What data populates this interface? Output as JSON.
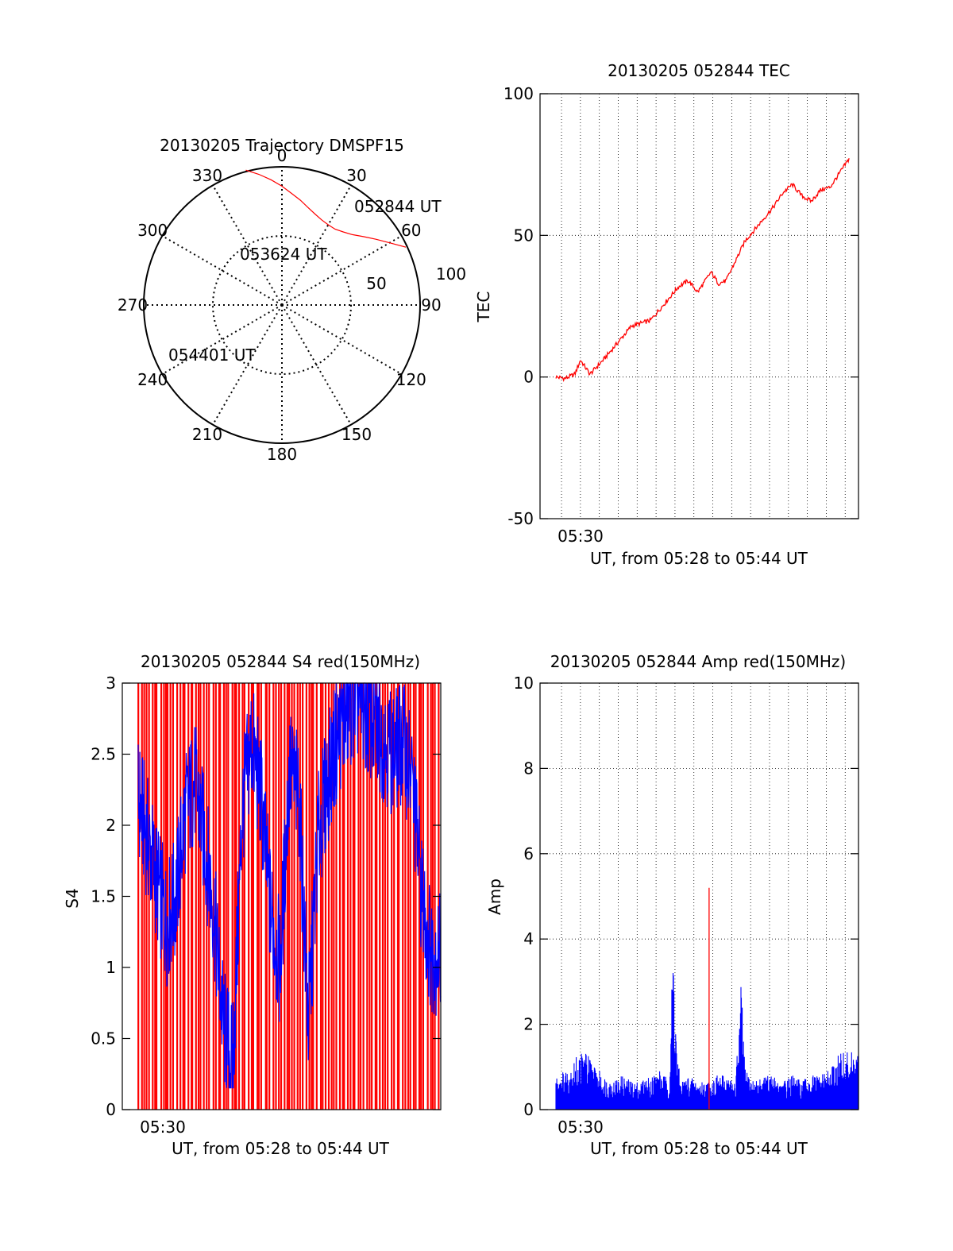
{
  "colors": {
    "red": "#ff0000",
    "blue": "#0000ff",
    "black": "#000000"
  },
  "chart_data": [
    {
      "type": "polar",
      "title": "20130205 Trajectory DMSPF15",
      "azimuth_labels": [
        "0",
        "30",
        "60",
        "90",
        "120",
        "150",
        "180",
        "210",
        "240",
        "270",
        "300",
        "330"
      ],
      "radius_labels": [
        "50",
        "100"
      ],
      "track": {
        "points_deg": [
          [
            65,
            99
          ],
          [
            60,
            90
          ],
          [
            55,
            83
          ],
          [
            50,
            77
          ],
          [
            45,
            72
          ],
          [
            40,
            69
          ],
          [
            35,
            67
          ],
          [
            30,
            67
          ],
          [
            25,
            68
          ],
          [
            20,
            70
          ],
          [
            15,
            73
          ],
          [
            10,
            77
          ],
          [
            5,
            81
          ],
          [
            0,
            86
          ],
          [
            -5,
            91
          ],
          [
            -10,
            96
          ],
          [
            -15,
            101
          ]
        ],
        "labels": [
          {
            "text": "052844 UT"
          },
          {
            "text": "053624 UT"
          },
          {
            "text": "054401 UT"
          }
        ]
      }
    },
    {
      "type": "line",
      "title": "20130205 052844 TEC",
      "xlabel": "UT, from 05:28 to 05:44 UT",
      "ylabel": "TEC",
      "xtick_label": "05:30",
      "yticks": [
        "-50",
        "0",
        "50",
        "100"
      ],
      "ylim": [
        -50,
        100
      ],
      "xlim_minutes": [
        0,
        16
      ],
      "grid": true,
      "series": [
        {
          "color": "red",
          "x_minutes": [
            0.0,
            0.5,
            1.0,
            1.3,
            1.8,
            2.5,
            3.0,
            3.5,
            4.0,
            4.5,
            5.0,
            5.5,
            6.0,
            6.5,
            7.0,
            7.5,
            7.8,
            8.2,
            8.6,
            9.0,
            9.5,
            10.0,
            10.5,
            11.0,
            11.5,
            12.0,
            12.5,
            13.0,
            13.5,
            14.0,
            14.5,
            15.0,
            15.5
          ],
          "y": [
            0,
            -0.5,
            1,
            6,
            1,
            6,
            10,
            14,
            18,
            19,
            20,
            24,
            28,
            32,
            34,
            30,
            33,
            37,
            33,
            34,
            41,
            48,
            52,
            56,
            60,
            65,
            68,
            64,
            62,
            66,
            67,
            72,
            77
          ]
        }
      ]
    },
    {
      "type": "line",
      "title": "20130205 052844 S4 red(150MHz)",
      "xlabel": "UT, from 05:28 to 05:44 UT",
      "ylabel": "S4",
      "xtick_label": "05:30",
      "yticks": [
        "0",
        "0.5",
        "1",
        "1.5",
        "2",
        "2.5",
        "3"
      ],
      "ylim": [
        0,
        3
      ],
      "xlim_minutes": [
        0,
        16
      ],
      "series": [
        {
          "name": "",
          "color": "blue",
          "x_minutes": [
            0.0,
            0.5,
            1.0,
            1.5,
            2.0,
            2.5,
            3.0,
            3.5,
            4.0,
            4.5,
            5.0,
            5.5,
            6.0,
            6.5,
            7.0,
            7.5,
            8.0,
            8.5,
            9.0,
            9.5,
            10.0,
            10.5,
            11.0,
            11.5,
            12.0,
            12.5,
            13.0,
            13.5,
            14.0,
            14.5,
            15.0,
            15.5
          ],
          "y": [
            2.2,
            1.9,
            1.6,
            1.3,
            1.5,
            2.1,
            2.3,
            1.9,
            1.4,
            0.6,
            0.3,
            2.1,
            2.6,
            2.2,
            1.4,
            1.0,
            2.4,
            2.2,
            0.6,
            1.9,
            2.3,
            2.6,
            2.8,
            2.9,
            2.8,
            2.7,
            2.6,
            2.5,
            2.6,
            2.3,
            1.5,
            1.1
          ]
        }
      ]
    },
    {
      "type": "line",
      "title": "20130205 052844 Amp red(150MHz)",
      "xlabel": "UT, from 05:28 to 05:44 UT",
      "ylabel": "Amp",
      "xtick_label": "05:30",
      "yticks": [
        "0",
        "2",
        "4",
        "6",
        "8",
        "10"
      ],
      "ylim": [
        0,
        10
      ],
      "xlim_minutes": [
        0,
        16
      ],
      "grid": true,
      "series": [
        {
          "color": "blue",
          "x_minutes": [
            0.0,
            0.5,
            1.0,
            1.5,
            2.0,
            2.5,
            3.0,
            3.5,
            4.0,
            4.5,
            5.0,
            5.5,
            6.0,
            6.2,
            6.4,
            6.6,
            7.0,
            7.5,
            8.0,
            8.5,
            9.0,
            9.5,
            9.8,
            10.0,
            10.5,
            11.0,
            11.5,
            12.0,
            12.5,
            13.0,
            13.5,
            14.0,
            14.5,
            15.0,
            15.5
          ],
          "y": [
            0.6,
            0.7,
            0.9,
            1.1,
            0.8,
            0.6,
            0.5,
            0.6,
            0.5,
            0.5,
            0.6,
            0.7,
            0.5,
            3.2,
            1.0,
            0.5,
            0.6,
            0.5,
            0.5,
            0.6,
            0.6,
            0.5,
            2.3,
            0.7,
            0.5,
            0.6,
            0.6,
            0.5,
            0.6,
            0.5,
            0.6,
            0.6,
            0.7,
            1.0,
            1.0
          ]
        },
        {
          "color": "red",
          "spike_minute": 8.1,
          "spike_value": 5.2
        }
      ]
    }
  ]
}
